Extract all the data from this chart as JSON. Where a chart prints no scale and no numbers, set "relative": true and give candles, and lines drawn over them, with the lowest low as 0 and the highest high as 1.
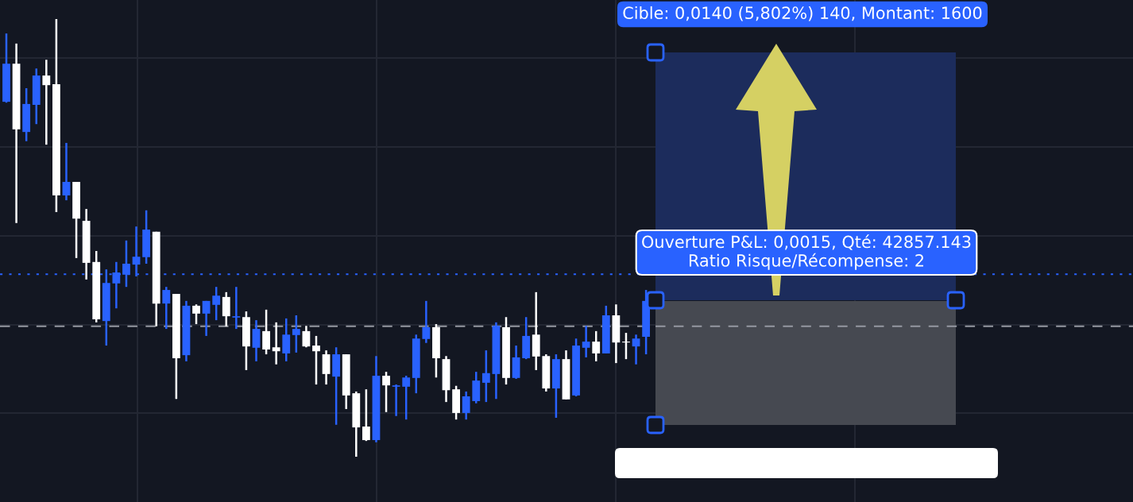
{
  "chart_data": {
    "type": "candlestick",
    "relative": true,
    "grid": true,
    "categories": [
      null,
      null,
      null,
      null,
      null,
      null,
      null,
      null,
      null,
      null,
      null,
      null,
      null,
      null,
      null,
      null,
      null,
      null,
      null,
      null,
      null,
      null,
      null,
      null,
      null,
      null,
      null,
      null,
      null,
      null,
      null,
      null,
      null,
      null,
      null,
      null,
      null,
      null,
      null,
      null,
      null,
      null,
      null,
      null,
      null,
      null,
      null,
      null,
      null,
      null,
      null,
      null,
      null,
      null,
      null,
      null,
      null,
      null,
      null,
      null,
      null,
      null,
      null,
      null,
      null
    ],
    "ohlc": [
      [
        0.811,
        0.967,
        0.809,
        0.898
      ],
      [
        0.898,
        0.944,
        0.534,
        0.748
      ],
      [
        0.742,
        0.842,
        0.721,
        0.806
      ],
      [
        0.804,
        0.887,
        0.76,
        0.871
      ],
      [
        0.871,
        0.907,
        0.713,
        0.849
      ],
      [
        0.851,
        1,
        0.559,
        0.597
      ],
      [
        0.597,
        0.717,
        0.586,
        0.628
      ],
      [
        0.628,
        0.628,
        0.454,
        0.544
      ],
      [
        0.539,
        0.566,
        0.405,
        0.443
      ],
      [
        0.445,
        0.47,
        0.307,
        0.314
      ],
      [
        0.31,
        0.428,
        0.254,
        0.397
      ],
      [
        0.396,
        0.445,
        0.339,
        0.421
      ],
      [
        0.416,
        0.494,
        0.388,
        0.441
      ],
      [
        0.439,
        0.526,
        0.412,
        0.457
      ],
      [
        0.456,
        0.563,
        0.441,
        0.519
      ],
      [
        0.514,
        0.514,
        0.298,
        0.35
      ],
      [
        0.35,
        0.388,
        0.292,
        0.381
      ],
      [
        0.372,
        0.372,
        0.132,
        0.225
      ],
      [
        0.232,
        0.356,
        0.218,
        0.345
      ],
      [
        0.345,
        0.348,
        0.303,
        0.327
      ],
      [
        0.327,
        0.356,
        0.276,
        0.356
      ],
      [
        0.347,
        0.388,
        0.312,
        0.368
      ],
      [
        0.365,
        0.376,
        0.298,
        0.321
      ],
      [
        0.318,
        0.388,
        0.292,
        0.321
      ],
      [
        0.319,
        0.332,
        0.198,
        0.252
      ],
      [
        0.249,
        0.312,
        0.218,
        0.292
      ],
      [
        0.287,
        0.336,
        0.234,
        0.245
      ],
      [
        0.25,
        0.307,
        0.211,
        0.241
      ],
      [
        0.236,
        0.316,
        0.218,
        0.279
      ],
      [
        0.278,
        0.323,
        0.238,
        0.292
      ],
      [
        0.287,
        0.299,
        0.25,
        0.252
      ],
      [
        0.254,
        0.276,
        0.165,
        0.241
      ],
      [
        0.234,
        0.243,
        0.165,
        0.189
      ],
      [
        0.183,
        0.25,
        0.073,
        0.234
      ],
      [
        0.234,
        0.234,
        0.109,
        0.14
      ],
      [
        0.145,
        0.149,
        0,
        0.067
      ],
      [
        0.069,
        0.154,
        0.036,
        0.038
      ],
      [
        0.038,
        0.23,
        0.033,
        0.185
      ],
      [
        0.185,
        0.194,
        0.102,
        0.163
      ],
      [
        0.16,
        0.165,
        0.093,
        0.163
      ],
      [
        0.16,
        0.185,
        0.085,
        0.181
      ],
      [
        0.18,
        0.279,
        0.145,
        0.27
      ],
      [
        0.269,
        0.356,
        0.26,
        0.296
      ],
      [
        0.296,
        0.303,
        0.181,
        0.225
      ],
      [
        0.223,
        0.23,
        0.125,
        0.152
      ],
      [
        0.154,
        0.162,
        0.085,
        0.1
      ],
      [
        0.1,
        0.149,
        0.085,
        0.138
      ],
      [
        0.127,
        0.194,
        0.122,
        0.174
      ],
      [
        0.169,
        0.243,
        0.125,
        0.191
      ],
      [
        0.189,
        0.307,
        0.132,
        0.299
      ],
      [
        0.296,
        0.319,
        0.165,
        0.18
      ],
      [
        0.18,
        0.254,
        0.178,
        0.227
      ],
      [
        0.225,
        0.319,
        0.223,
        0.276
      ],
      [
        0.279,
        0.376,
        0.198,
        0.229
      ],
      [
        0.23,
        0.234,
        0.149,
        0.156
      ],
      [
        0.156,
        0.234,
        0.089,
        0.223
      ],
      [
        0.223,
        0.243,
        0.131,
        0.131
      ],
      [
        0.14,
        0.27,
        0.138,
        0.254
      ],
      [
        0.249,
        0.299,
        0.227,
        0.263
      ],
      [
        0.263,
        0.287,
        0.218,
        0.236
      ],
      [
        0.236,
        0.345,
        0.236,
        0.323
      ],
      [
        0.323,
        0.348,
        0.214,
        0.261
      ],
      [
        0.263,
        0.283,
        0.223,
        0.261
      ],
      [
        0.252,
        0.279,
        0.211,
        0.27
      ],
      [
        0.274,
        0.381,
        0.234,
        0.356
      ]
    ],
    "colors": [
      "#2962ff",
      "#ffffff",
      "#2962ff",
      "#2962ff",
      "#ffffff",
      "#ffffff",
      "#2962ff",
      "#ffffff",
      "#ffffff",
      "#ffffff",
      "#2962ff",
      "#2962ff",
      "#2962ff",
      "#2962ff",
      "#2962ff",
      "#ffffff",
      "#2962ff",
      "#ffffff",
      "#2962ff",
      "#ffffff",
      "#2962ff",
      "#2962ff",
      "#ffffff",
      "#2962ff",
      "#ffffff",
      "#2962ff",
      "#ffffff",
      "#ffffff",
      "#2962ff",
      "#2962ff",
      "#ffffff",
      "#ffffff",
      "#ffffff",
      "#2962ff",
      "#ffffff",
      "#ffffff",
      "#ffffff",
      "#2962ff",
      "#ffffff",
      "#2962ff",
      "#2962ff",
      "#2962ff",
      "#2962ff",
      "#ffffff",
      "#ffffff",
      "#ffffff",
      "#2962ff",
      "#2962ff",
      "#2962ff",
      "#2962ff",
      "#ffffff",
      "#2962ff",
      "#2962ff",
      "#ffffff",
      "#ffffff",
      "#2962ff",
      "#ffffff",
      "#2962ff",
      "#2962ff",
      "#ffffff",
      "#2962ff",
      "#ffffff",
      "#ffffff",
      "#2962ff",
      "#2962ff"
    ],
    "ref_lines": [
      {
        "axis": "y",
        "value": 0.417,
        "color": "#2962ff",
        "line_style": "dotted"
      },
      {
        "axis": "y",
        "value": 0.298,
        "color": "#9598a1",
        "line_style": "dashed"
      }
    ],
    "annotations": [
      "Cible: 0,0140 (5,802%) 140, Montant: 1600",
      "Ouverture P&L: 0,0015, Qté: 42857.143\nRatio Risque/Récompense: 2"
    ]
  }
}
